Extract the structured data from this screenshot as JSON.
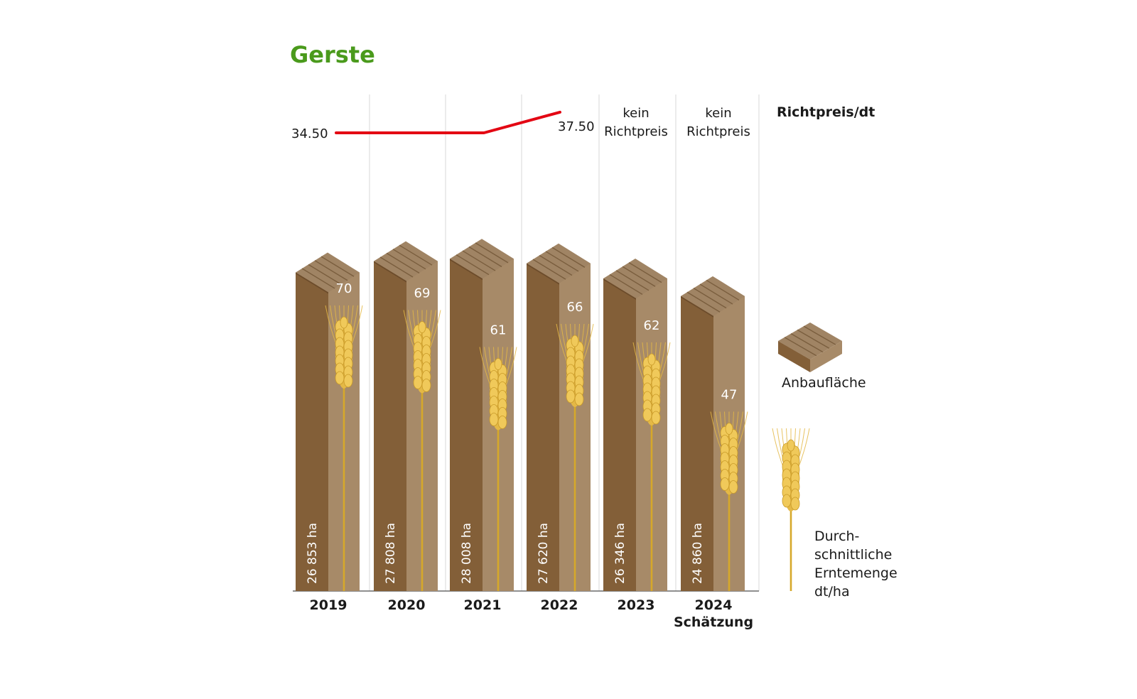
{
  "title": "Gerste",
  "chart_data": {
    "type": "bar",
    "categories": [
      "2019",
      "2020",
      "2021",
      "2022",
      "2023",
      "2024"
    ],
    "category_notes": [
      "",
      "",
      "",
      "",
      "",
      "Schätzung"
    ],
    "series": [
      {
        "name": "Anbaufläche",
        "values": [
          26853,
          27808,
          28008,
          27620,
          26346,
          24860
        ],
        "labels": [
          "26 853 ha",
          "27 808 ha",
          "28 008 ha",
          "27 620 ha",
          "26 346 ha",
          "24 860 ha"
        ]
      },
      {
        "name": "Durchschnittliche Erntemenge dt/ha",
        "values": [
          70,
          69,
          61,
          66,
          62,
          47
        ],
        "labels": [
          "70",
          "69",
          "61",
          "66",
          "62",
          "47"
        ]
      },
      {
        "name": "Richtpreis/dt",
        "type": "line",
        "values": [
          34.5,
          34.5,
          34.5,
          37.5,
          null,
          null
        ]
      }
    ],
    "price_start_label": "34.50",
    "price_end_label": "37.50",
    "no_price_line1": "kein",
    "no_price_line2": "Richtpreis",
    "legend": {
      "price": "Richtpreis/dt",
      "area": "Anbaufläche",
      "yield_lines": [
        "Durch-",
        "schnittliche",
        "Erntemenge",
        "dt/ha"
      ]
    },
    "colors": {
      "title": "#4a9a1c",
      "bar_front": "#835f38",
      "bar_side": "#a78a68",
      "bar_top": "#a08464",
      "price_line": "#e30613",
      "wheat": "#e4b846",
      "wheat_stem": "#d6a82a"
    }
  }
}
